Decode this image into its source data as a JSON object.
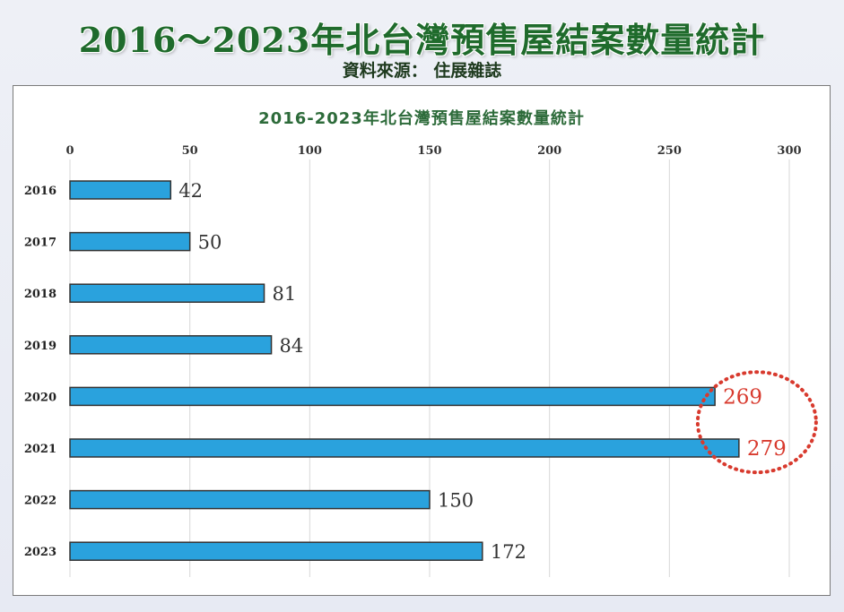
{
  "header": {
    "title": "2016～2023年北台灣預售屋結案數量統計",
    "source": "資料來源： 住展雜誌"
  },
  "colors": {
    "bar": "#2aa2dd",
    "bar_border": "#333333",
    "highlight": "#d83a2e",
    "title_green": "#1f6b2c"
  },
  "chart_data": {
    "type": "bar",
    "orientation": "horizontal",
    "title": "2016-2023年北台灣預售屋結案數量統計",
    "categories": [
      "2016",
      "2017",
      "2018",
      "2019",
      "2020",
      "2021",
      "2022",
      "2023"
    ],
    "values": [
      42,
      50,
      81,
      84,
      269,
      279,
      150,
      172
    ],
    "xlim": [
      0,
      300
    ],
    "xticks": [
      0,
      50,
      100,
      150,
      200,
      250,
      300
    ],
    "xaxis_position": "top",
    "grid": true,
    "highlighted_categories": [
      "2020",
      "2021"
    ]
  }
}
